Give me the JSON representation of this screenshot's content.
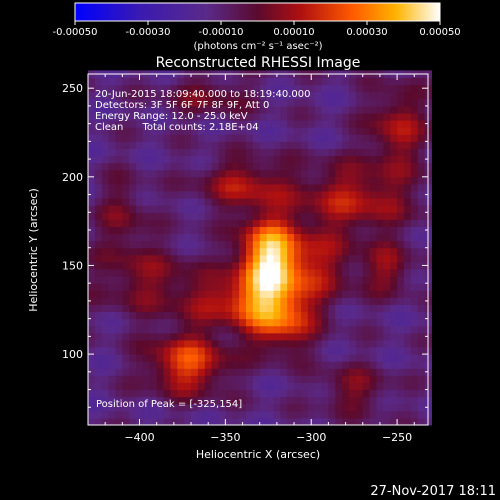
{
  "colorbar": {
    "ticks": [
      "-0.00050",
      "-0.00030",
      "-0.00010",
      "0.00010",
      "0.00030",
      "0.00050"
    ],
    "range": [
      -0.0005,
      0.0005
    ],
    "unit_label": "(photons cm⁻² s⁻¹ asec⁻²)"
  },
  "chart_data": {
    "type": "heatmap",
    "title": "Reconstructed RHESSI Image",
    "xlabel": "Heliocentric X (arcsec)",
    "ylabel": "Heliocentric Y (arcsec)",
    "xlim": [
      -430,
      -232
    ],
    "ylim": [
      60,
      258
    ],
    "xticks": [
      -400,
      -350,
      -300,
      -250
    ],
    "yticks": [
      100,
      150,
      200,
      250
    ],
    "annotations": [
      "20-Jun-2015 18:09:40.000 to 18:19:40.000",
      "Detectors: 3F 5F 6F 7F 8F 9F, Att 0",
      "Energy Range: 12.0 - 25.0 keV",
      "Clean      Total counts: 2.18E+04"
    ],
    "peak_label": "Position of Peak = [-325,154]",
    "peak_position": [
      -325,
      154
    ],
    "intensity_sources": [
      {
        "x": -325,
        "y": 154,
        "sx": 12,
        "sy": 16,
        "amp": 0.00052
      },
      {
        "x": -340,
        "y": 130,
        "sx": 22,
        "sy": 10,
        "amp": 0.00026
      },
      {
        "x": -300,
        "y": 150,
        "sx": 18,
        "sy": 14,
        "amp": 0.00022
      },
      {
        "x": -372,
        "y": 95,
        "sx": 16,
        "sy": 12,
        "amp": 0.00034
      },
      {
        "x": -318,
        "y": 118,
        "sx": 14,
        "sy": 12,
        "amp": 0.0003
      },
      {
        "x": -340,
        "y": 196,
        "sx": 18,
        "sy": 10,
        "amp": 0.00022
      },
      {
        "x": -275,
        "y": 188,
        "sx": 24,
        "sy": 14,
        "amp": 0.00024
      },
      {
        "x": -250,
        "y": 228,
        "sx": 12,
        "sy": 16,
        "amp": 0.00022
      },
      {
        "x": -395,
        "y": 142,
        "sx": 22,
        "sy": 14,
        "amp": 0.00016
      },
      {
        "x": -255,
        "y": 148,
        "sx": 10,
        "sy": 10,
        "amp": 0.00018
      },
      {
        "x": -410,
        "y": 178,
        "sx": 10,
        "sy": 16,
        "amp": 0.00014
      },
      {
        "x": -275,
        "y": 80,
        "sx": 14,
        "sy": 10,
        "amp": 0.00016
      },
      {
        "x": -360,
        "y": 246,
        "sx": 18,
        "sy": 8,
        "amp": 0.00014
      }
    ]
  },
  "footer": {
    "timestamp": "27-Nov-2017 18:11"
  }
}
